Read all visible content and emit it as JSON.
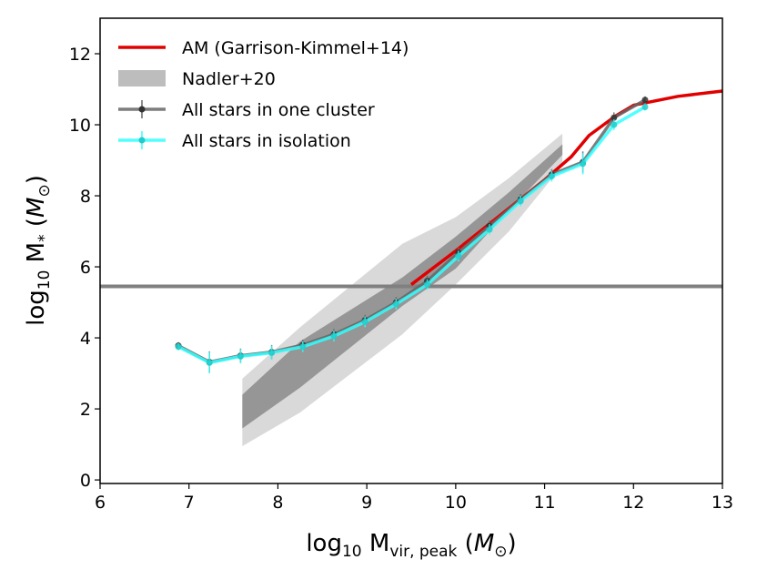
{
  "chart_data": {
    "type": "line",
    "xlabel": {
      "base": "log",
      "sub1": "10",
      "mid": " M",
      "sub2": "vir, peak",
      "unit_open": " (",
      "unit_var": "M",
      "unit_sub": "⊙",
      "unit_close": ")"
    },
    "ylabel": {
      "base": "log",
      "sub1": "10",
      "mid": " M",
      "sub2": "*",
      "unit_open": " (",
      "unit_var": "M",
      "unit_sub": "⊙",
      "unit_close": ")"
    },
    "xlim": [
      6,
      13
    ],
    "ylim": [
      -0.1,
      13
    ],
    "xticks": [
      "6",
      "7",
      "8",
      "9",
      "10",
      "11",
      "12",
      "13"
    ],
    "xtick_values": [
      6,
      7,
      8,
      9,
      10,
      11,
      12,
      13
    ],
    "yticks": [
      "0",
      "2",
      "4",
      "6",
      "8",
      "10",
      "12"
    ],
    "ytick_values": [
      0,
      2,
      4,
      6,
      8,
      10,
      12
    ],
    "legend_position": "upper-left",
    "hline": {
      "y": 5.45,
      "color": "#808080"
    },
    "bands": [
      {
        "name": "Nadler+20 outer",
        "color": "#d9d9d9",
        "x": [
          7.6,
          8.25,
          9.4,
          10.0,
          10.6,
          11.2
        ],
        "lower": [
          0.95,
          1.9,
          4.1,
          5.5,
          7.0,
          8.85
        ],
        "upper": [
          2.85,
          4.3,
          6.65,
          7.4,
          8.5,
          9.75
        ]
      },
      {
        "name": "Nadler+20 inner",
        "color": "#969696",
        "x": [
          7.6,
          8.25,
          9.4,
          10.0,
          10.6,
          11.2
        ],
        "lower": [
          1.45,
          2.6,
          4.9,
          5.95,
          7.6,
          9.15
        ],
        "upper": [
          2.4,
          3.9,
          5.7,
          6.85,
          8.1,
          9.45
        ]
      }
    ],
    "series": [
      {
        "name": "AM (Garrison-Kimmel+14)",
        "color": "#e00000",
        "x": [
          9.5,
          10.0,
          10.5,
          11.0,
          11.3,
          11.5,
          11.8,
          12.0,
          12.5,
          13.0
        ],
        "y": [
          5.5,
          6.45,
          7.45,
          8.45,
          9.1,
          9.7,
          10.25,
          10.55,
          10.8,
          10.95
        ]
      },
      {
        "name": "All stars in one cluster",
        "color": "#666666",
        "x": [
          6.88,
          7.23,
          7.58,
          7.93,
          8.28,
          8.63,
          8.98,
          9.33,
          9.68,
          10.03,
          10.38,
          10.73,
          11.08,
          11.43,
          11.78,
          12.13
        ],
        "y": [
          3.78,
          3.32,
          3.5,
          3.6,
          3.8,
          4.1,
          4.5,
          5.0,
          5.6,
          6.4,
          7.15,
          7.9,
          8.6,
          8.95,
          10.2,
          10.7
        ],
        "err": [
          0.1,
          0.3,
          0.2,
          0.2,
          0.15,
          0.15,
          0.15,
          0.15,
          0.15,
          0.15,
          0.15,
          0.15,
          0.15,
          0.3,
          0.15,
          0.1
        ]
      },
      {
        "name": "All stars in isolation",
        "color": "#33ffff",
        "x": [
          6.88,
          7.23,
          7.58,
          7.93,
          8.28,
          8.63,
          8.98,
          9.33,
          9.68,
          10.03,
          10.38,
          10.73,
          11.08,
          11.43,
          11.78,
          12.13
        ],
        "y": [
          3.75,
          3.3,
          3.48,
          3.58,
          3.75,
          4.05,
          4.45,
          4.95,
          5.5,
          6.3,
          7.05,
          7.85,
          8.55,
          8.9,
          10.0,
          10.5
        ],
        "err": [
          0.1,
          0.3,
          0.2,
          0.2,
          0.15,
          0.15,
          0.15,
          0.15,
          0.15,
          0.15,
          0.15,
          0.15,
          0.15,
          0.3,
          0.15,
          0.1
        ]
      }
    ],
    "legend": [
      {
        "label": "AM (Garrison-Kimmel+14)",
        "kind": "line",
        "color": "#e00000"
      },
      {
        "label": "Nadler+20",
        "kind": "patch",
        "color": "#bdbdbd"
      },
      {
        "label": "All stars in one cluster",
        "kind": "errline",
        "color": "#666666"
      },
      {
        "label": "All stars in isolation",
        "kind": "errline",
        "color": "#33ffff"
      }
    ]
  }
}
